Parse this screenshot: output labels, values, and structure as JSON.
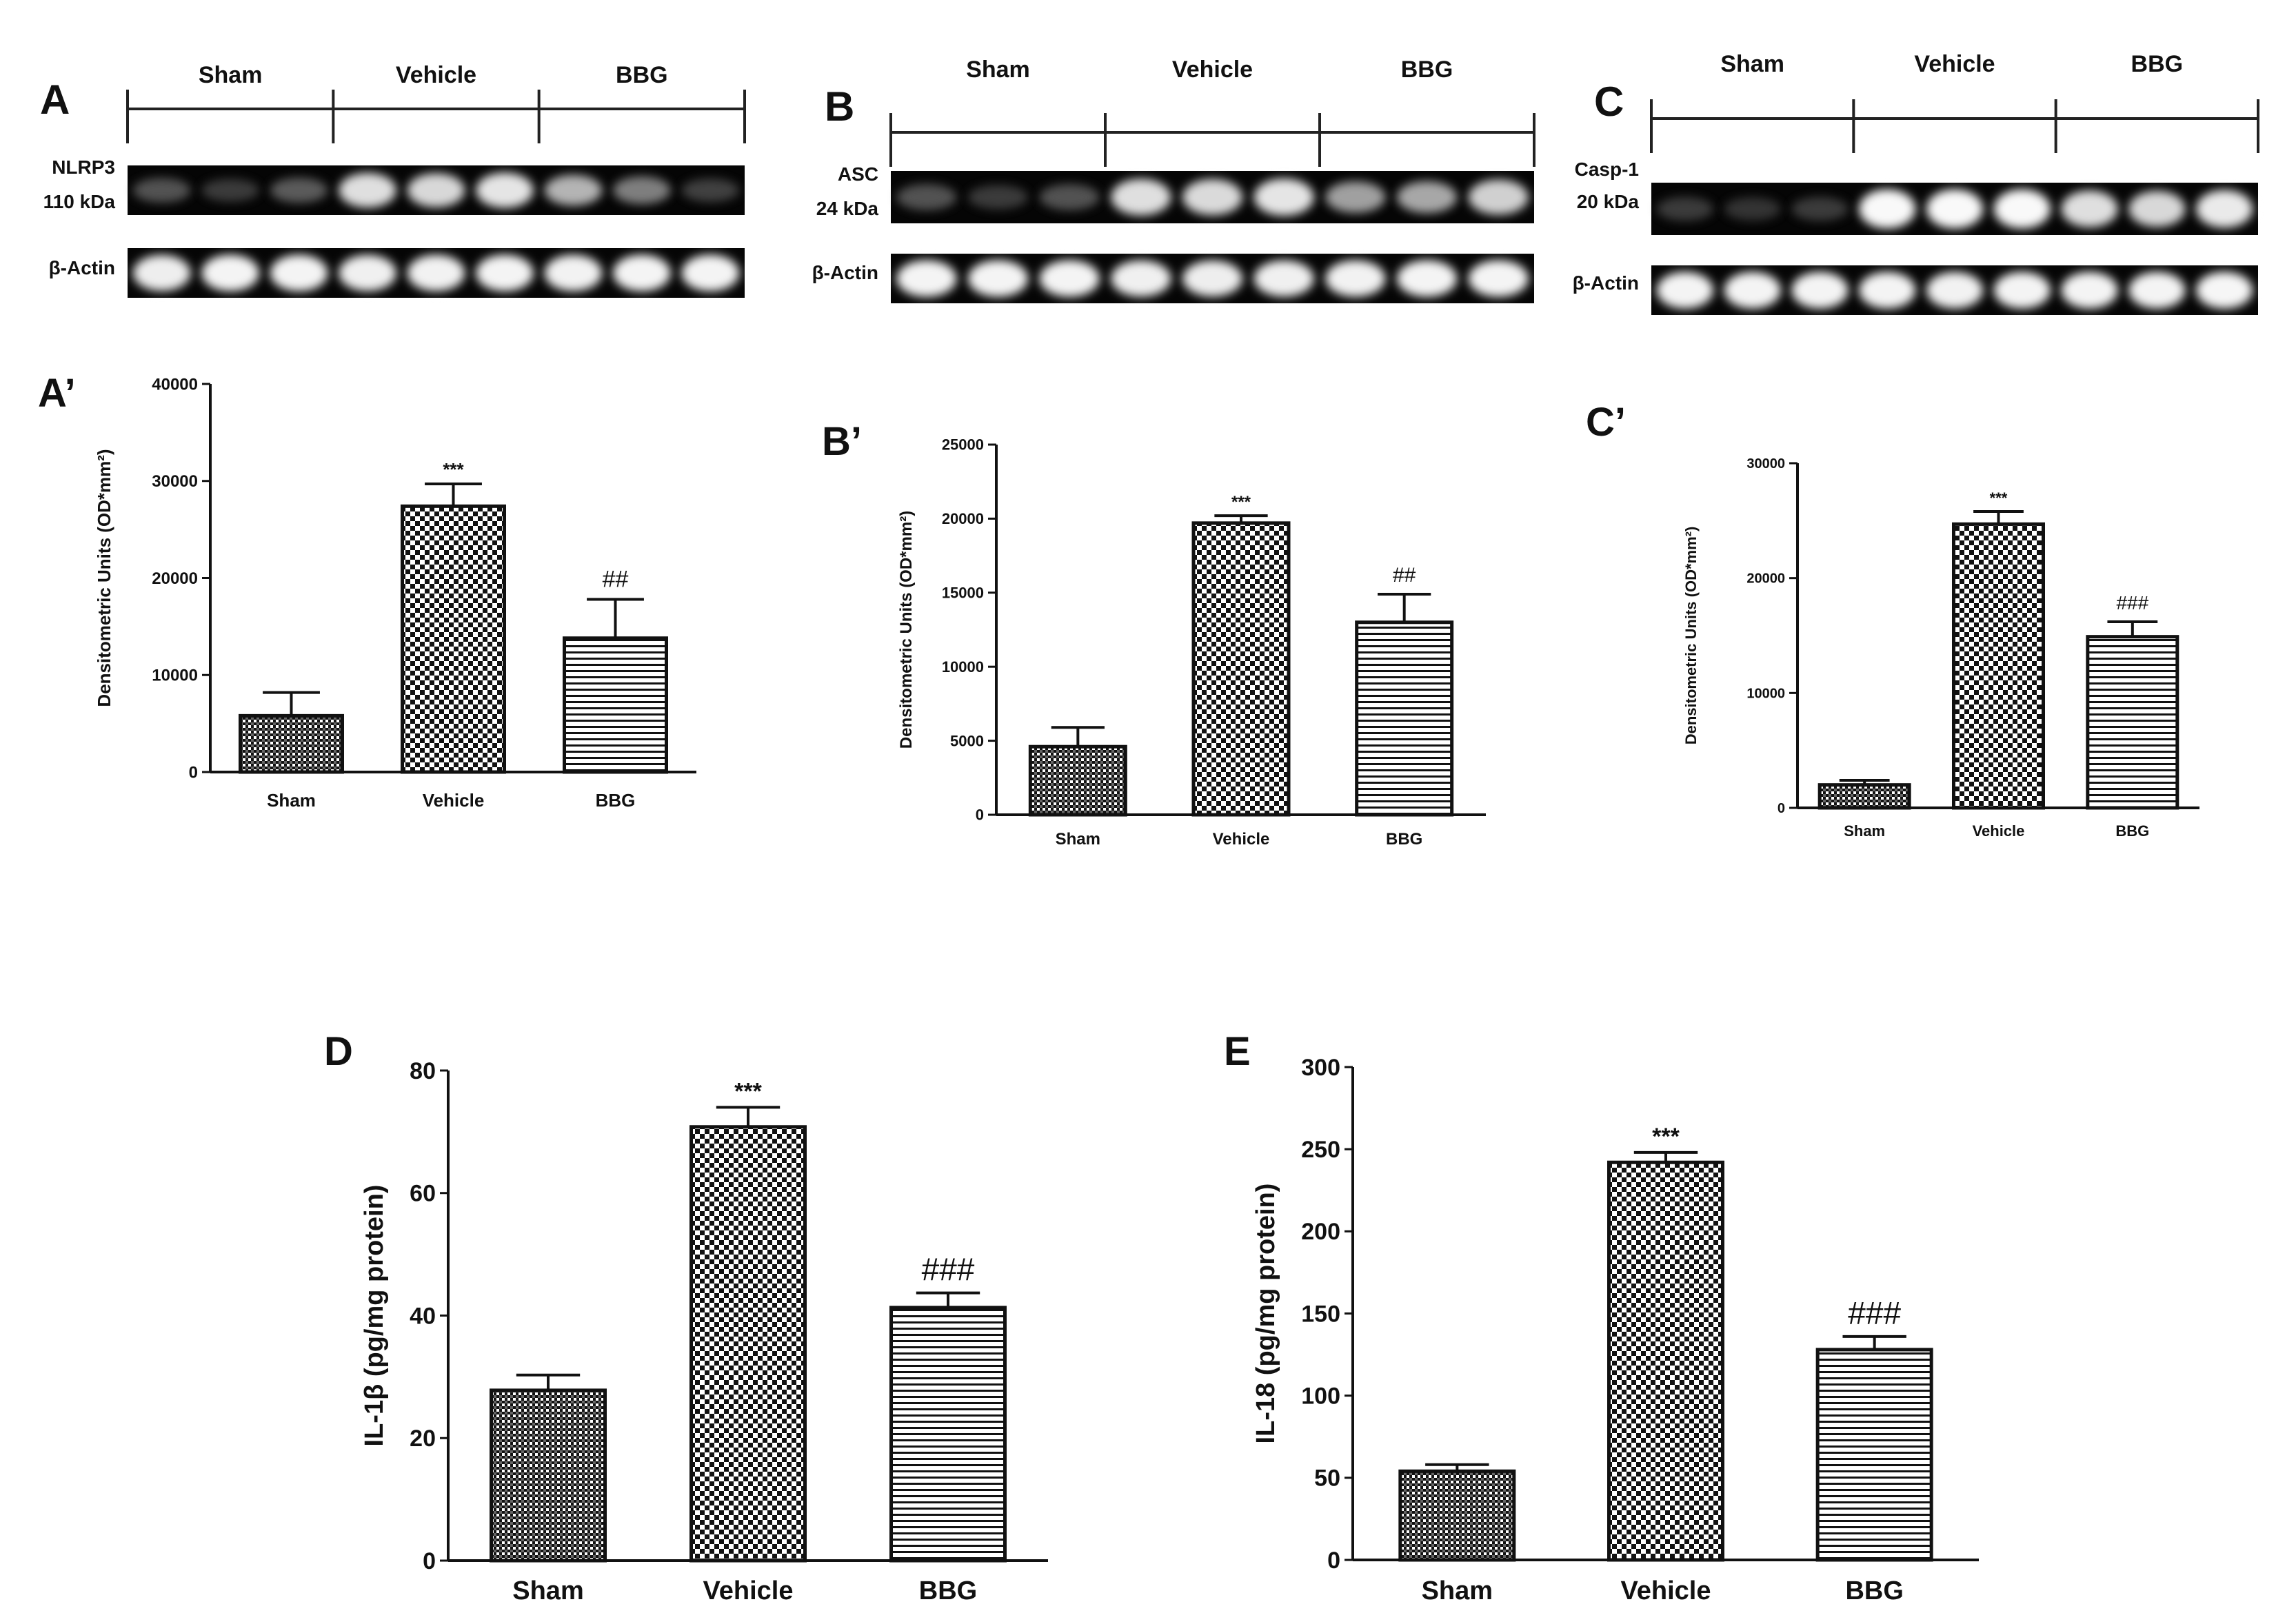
{
  "blots": [
    {
      "panel": "A",
      "groups": [
        "Sham",
        "Vehicle",
        "BBG"
      ],
      "rows": [
        {
          "label": "NLRP3",
          "sublabel": "110 kDa",
          "intensities": [
            0.35,
            0.25,
            0.38,
            0.85,
            0.82,
            0.88,
            0.65,
            0.5,
            0.28
          ]
        },
        {
          "label": "β-Actin",
          "sublabel": "",
          "intensities": [
            0.92,
            0.95,
            0.95,
            0.93,
            0.94,
            0.95,
            0.94,
            0.95,
            0.95
          ]
        }
      ]
    },
    {
      "panel": "B",
      "groups": [
        "Sham",
        "Vehicle",
        "BBG"
      ],
      "rows": [
        {
          "label": "ASC",
          "sublabel": "24 kDa",
          "intensities": [
            0.35,
            0.25,
            0.35,
            0.85,
            0.83,
            0.88,
            0.6,
            0.62,
            0.78
          ]
        },
        {
          "label": "β-Actin",
          "sublabel": "",
          "intensities": [
            0.95,
            0.95,
            0.95,
            0.93,
            0.92,
            0.93,
            0.94,
            0.95,
            0.95
          ]
        }
      ]
    },
    {
      "panel": "C",
      "groups": [
        "Sham",
        "Vehicle",
        "BBG"
      ],
      "rows": [
        {
          "label": "Casp-1",
          "sublabel": "20 kDa",
          "intensities": [
            0.25,
            0.22,
            0.25,
            0.97,
            0.97,
            0.97,
            0.85,
            0.82,
            0.9
          ]
        },
        {
          "label": "β-Actin",
          "sublabel": "",
          "intensities": [
            0.95,
            0.95,
            0.95,
            0.95,
            0.94,
            0.95,
            0.95,
            0.95,
            0.96
          ]
        }
      ]
    }
  ],
  "chart_data": [
    {
      "panel": "A’",
      "type": "bar",
      "categories": [
        "Sham",
        "Vehicle",
        "BBG"
      ],
      "values": [
        5800,
        27400,
        13800
      ],
      "errors": [
        2400,
        2300,
        4000
      ],
      "annotations": [
        "",
        "***",
        "##"
      ],
      "ylabel": "Densitometric Units (OD*mm²)",
      "ylim": [
        0,
        40000
      ],
      "yticks": [
        0,
        10000,
        20000,
        30000,
        40000
      ],
      "patterns": [
        "dots",
        "checker",
        "hlines"
      ]
    },
    {
      "panel": "B’",
      "type": "bar",
      "categories": [
        "Sham",
        "Vehicle",
        "BBG"
      ],
      "values": [
        4600,
        19700,
        13000
      ],
      "errors": [
        1300,
        500,
        1900
      ],
      "annotations": [
        "",
        "***",
        "##"
      ],
      "ylabel": "Densitometric Units (OD*mm²)",
      "ylim": [
        0,
        25000
      ],
      "yticks": [
        0,
        5000,
        10000,
        15000,
        20000,
        25000
      ],
      "patterns": [
        "dots",
        "checker",
        "hlines"
      ]
    },
    {
      "panel": "C’",
      "type": "bar",
      "categories": [
        "Sham",
        "Vehicle",
        "BBG"
      ],
      "values": [
        2000,
        24700,
        14900
      ],
      "errors": [
        400,
        1100,
        1300
      ],
      "annotations": [
        "",
        "***",
        "###"
      ],
      "ylabel": "Densitometric Units (OD*mm²)",
      "ylim": [
        0,
        30000
      ],
      "yticks": [
        0,
        10000,
        20000,
        30000
      ],
      "patterns": [
        "dots",
        "checker",
        "hlines"
      ]
    },
    {
      "panel": "D",
      "type": "bar",
      "categories": [
        "Sham",
        "Vehicle",
        "BBG"
      ],
      "values": [
        27.8,
        70.8,
        41.3
      ],
      "errors": [
        2.5,
        3.2,
        2.4
      ],
      "annotations": [
        "",
        "***",
        "###"
      ],
      "ylabel": "IL-1β (pg/mg protein)",
      "ylim": [
        0,
        80
      ],
      "yticks": [
        0,
        20,
        40,
        60,
        80
      ],
      "patterns": [
        "dots",
        "checker",
        "hlines"
      ]
    },
    {
      "panel": "E",
      "type": "bar",
      "categories": [
        "Sham",
        "Vehicle",
        "BBG"
      ],
      "values": [
        54,
        242,
        128
      ],
      "errors": [
        4,
        6,
        8
      ],
      "annotations": [
        "",
        "***",
        "###"
      ],
      "ylabel": "IL-18 (pg/mg protein)",
      "ylim": [
        0,
        300
      ],
      "yticks": [
        0,
        50,
        100,
        150,
        200,
        250,
        300
      ],
      "patterns": [
        "dots",
        "checker",
        "hlines"
      ]
    }
  ]
}
